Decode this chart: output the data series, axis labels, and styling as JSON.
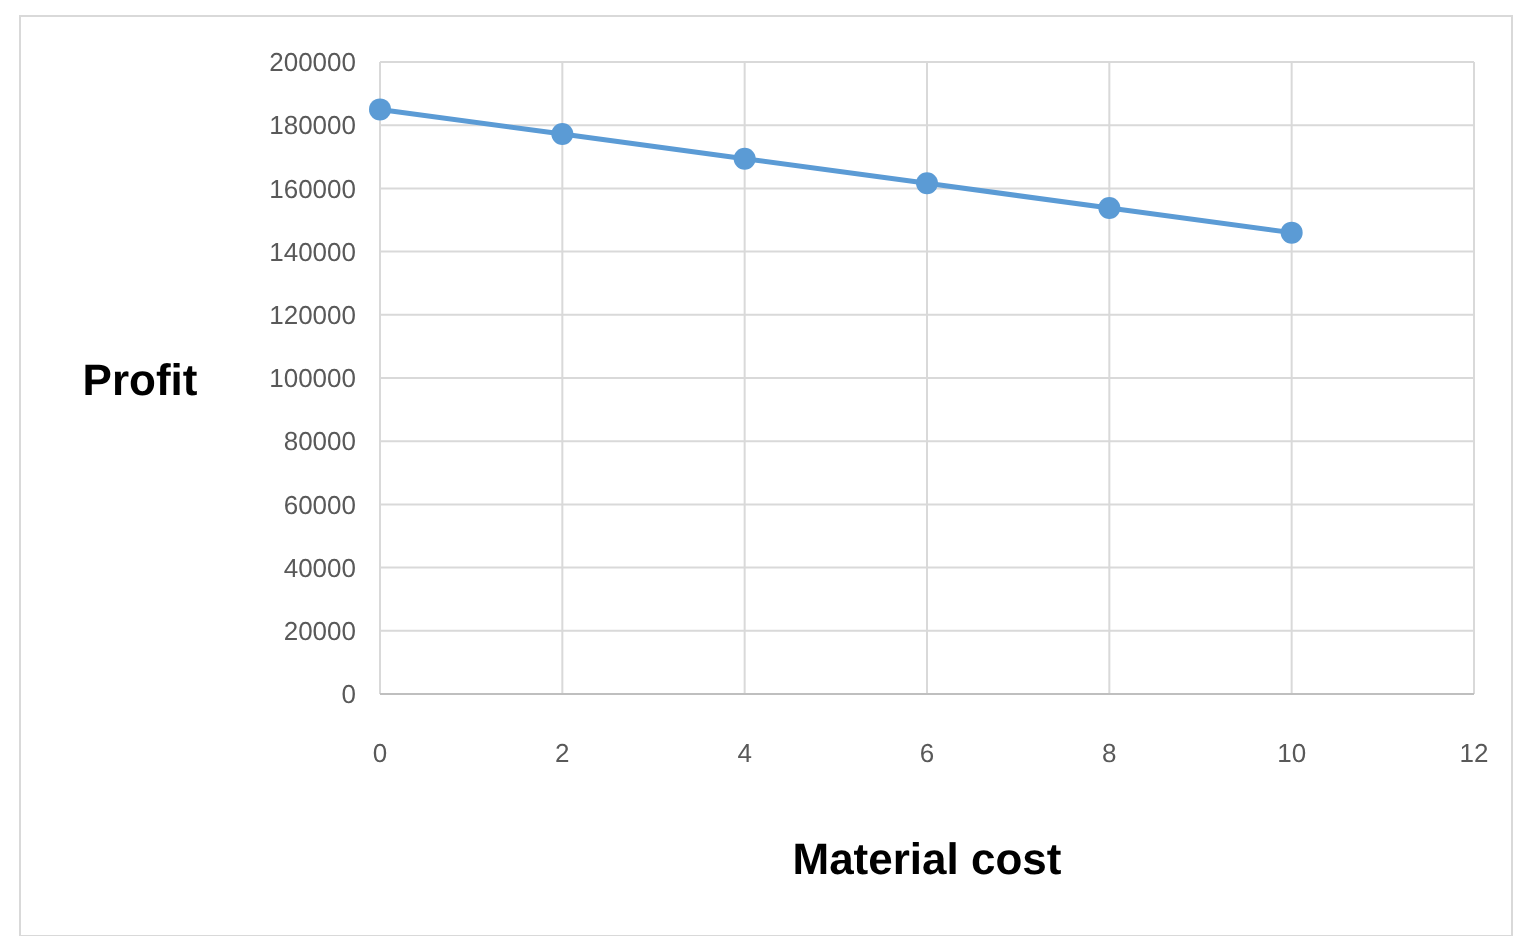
{
  "chart_data": {
    "type": "line",
    "xlabel": "Material cost",
    "ylabel": "Profit",
    "x": [
      0,
      2,
      4,
      6,
      8,
      10
    ],
    "series": [
      {
        "color": "#5b9bd5",
        "values": [
          185000,
          177200,
          169400,
          161600,
          153800,
          146000
        ]
      }
    ],
    "xlim": [
      0,
      12
    ],
    "xticks": [
      0,
      2,
      4,
      6,
      8,
      10,
      12
    ],
    "ylim": [
      0,
      200000
    ],
    "yticks": [
      0,
      20000,
      40000,
      60000,
      80000,
      100000,
      120000,
      140000,
      160000,
      180000,
      200000
    ],
    "grid": true,
    "marker": "circle",
    "line_style": "solid"
  }
}
